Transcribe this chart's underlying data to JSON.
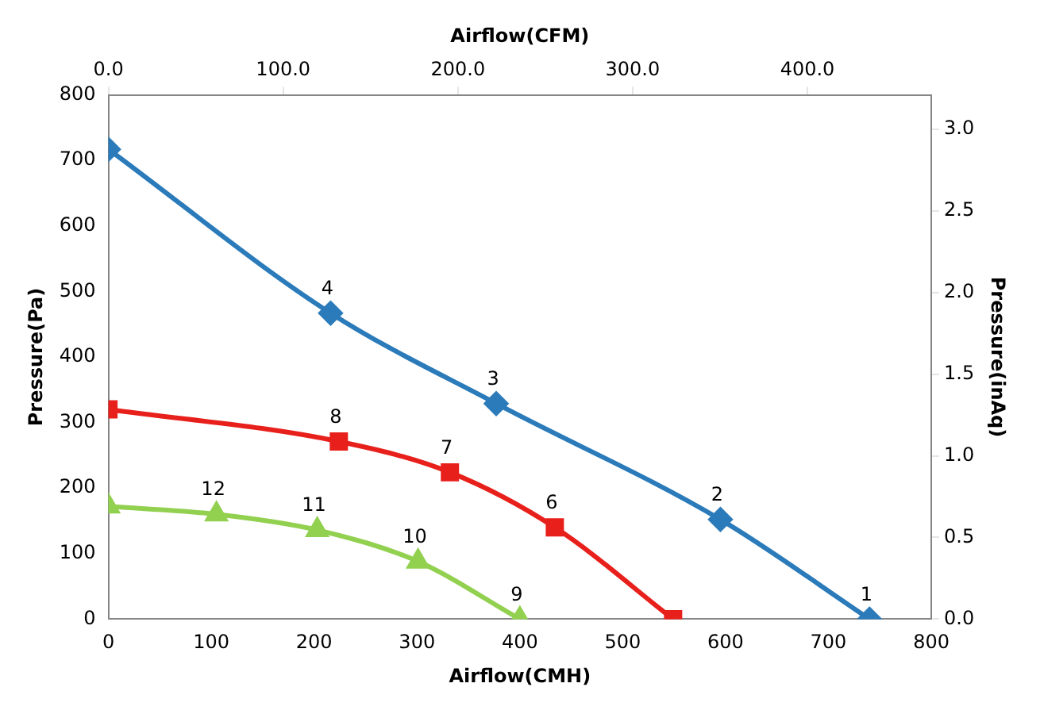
{
  "chart_data": {
    "type": "line",
    "xlabel": "Airflow(CMH)",
    "ylabel": "Pressure(Pa)",
    "x2label": "Airflow(CFM)",
    "y2label": "Pressure(inAq)",
    "xlim": [
      0,
      800
    ],
    "xticks": [
      0,
      100,
      200,
      300,
      400,
      500,
      600,
      700,
      800
    ],
    "ylim": [
      0,
      800
    ],
    "yticks": [
      0,
      100,
      200,
      300,
      400,
      500,
      600,
      700,
      800
    ],
    "x2lim": [
      0,
      470.9
    ],
    "x2ticks": [
      {
        "value": 0,
        "label": "0.0"
      },
      {
        "value": 100,
        "label": "100.0"
      },
      {
        "value": 200,
        "label": "200.0"
      },
      {
        "value": 300,
        "label": "300.0"
      },
      {
        "value": 400,
        "label": "400.0"
      }
    ],
    "y2lim": [
      0,
      3.21
    ],
    "y2ticks": [
      {
        "value": 0,
        "label": "0.0"
      },
      {
        "value": 0.5,
        "label": "0.5"
      },
      {
        "value": 1,
        "label": "1.0"
      },
      {
        "value": 1.5,
        "label": "1.5"
      },
      {
        "value": 2,
        "label": "2.0"
      },
      {
        "value": 2.5,
        "label": "2.5"
      },
      {
        "value": 3,
        "label": "3.0"
      }
    ],
    "grid": false,
    "legend": false,
    "series": [
      {
        "color": "#2b7bba",
        "marker": "diamond",
        "x": [
          0,
          216,
          377,
          595,
          740
        ],
        "values": [
          717,
          467,
          329,
          152,
          0
        ]
      },
      {
        "color": "#e8201c",
        "marker": "square",
        "x": [
          0,
          224,
          332,
          434,
          549
        ],
        "values": [
          320,
          271,
          224,
          140,
          0
        ]
      },
      {
        "color": "#92d050",
        "marker": "triangle",
        "x": [
          0,
          105,
          203,
          301,
          400
        ],
        "values": [
          172,
          160,
          136,
          88,
          0
        ]
      }
    ],
    "annotations": [
      {
        "text": "1",
        "x": 740,
        "y": 0
      },
      {
        "text": "2",
        "x": 595,
        "y": 152
      },
      {
        "text": "3",
        "x": 377,
        "y": 329
      },
      {
        "text": "4",
        "x": 216,
        "y": 467
      },
      {
        "text": "6",
        "x": 434,
        "y": 140
      },
      {
        "text": "7",
        "x": 332,
        "y": 224
      },
      {
        "text": "8",
        "x": 224,
        "y": 271
      },
      {
        "text": "9",
        "x": 400,
        "y": 0
      },
      {
        "text": "10",
        "x": 301,
        "y": 88
      },
      {
        "text": "11",
        "x": 203,
        "y": 136
      },
      {
        "text": "12",
        "x": 105,
        "y": 160
      }
    ]
  }
}
